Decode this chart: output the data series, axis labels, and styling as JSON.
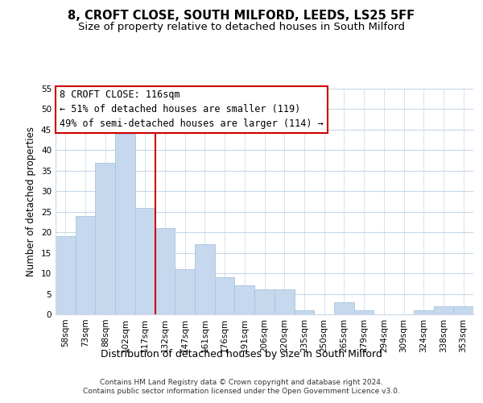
{
  "title": "8, CROFT CLOSE, SOUTH MILFORD, LEEDS, LS25 5FF",
  "subtitle": "Size of property relative to detached houses in South Milford",
  "xlabel": "Distribution of detached houses by size in South Milford",
  "ylabel": "Number of detached properties",
  "bar_labels": [
    "58sqm",
    "73sqm",
    "88sqm",
    "102sqm",
    "117sqm",
    "132sqm",
    "147sqm",
    "161sqm",
    "176sqm",
    "191sqm",
    "206sqm",
    "220sqm",
    "235sqm",
    "250sqm",
    "265sqm",
    "279sqm",
    "294sqm",
    "309sqm",
    "324sqm",
    "338sqm",
    "353sqm"
  ],
  "bar_values": [
    19,
    24,
    37,
    44,
    26,
    21,
    11,
    17,
    9,
    7,
    6,
    6,
    1,
    0,
    3,
    1,
    0,
    0,
    1,
    2,
    2
  ],
  "bar_color": "#c5d8ed",
  "bar_edge_color": "#a8c4de",
  "vline_x_index": 4,
  "vline_color": "#cc0000",
  "ylim": [
    0,
    55
  ],
  "yticks": [
    0,
    5,
    10,
    15,
    20,
    25,
    30,
    35,
    40,
    45,
    50,
    55
  ],
  "annotation_title": "8 CROFT CLOSE: 116sqm",
  "annotation_line1": "← 51% of detached houses are smaller (119)",
  "annotation_line2": "49% of semi-detached houses are larger (114) →",
  "footer1": "Contains HM Land Registry data © Crown copyright and database right 2024.",
  "footer2": "Contains public sector information licensed under the Open Government Licence v3.0.",
  "background_color": "#ffffff",
  "grid_color": "#c8d8e8",
  "title_fontsize": 10.5,
  "subtitle_fontsize": 9.5,
  "ylabel_fontsize": 8.5,
  "xlabel_fontsize": 9,
  "tick_fontsize": 7.5,
  "annotation_fontsize": 8.5,
  "footer_fontsize": 6.5
}
